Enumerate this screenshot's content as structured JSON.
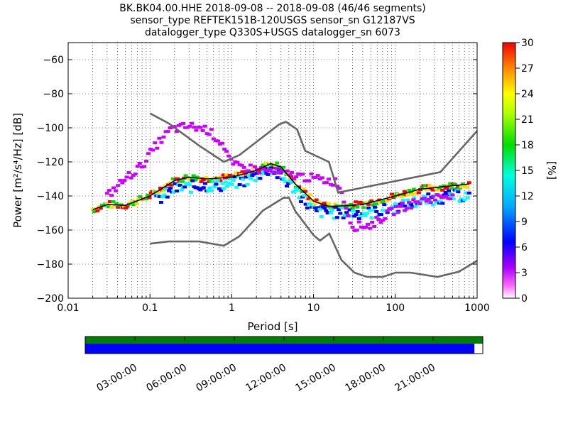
{
  "chart_data": {
    "type": "heatmap",
    "title_lines": [
      "BK.BK04.00.HHE   2018-09-08 -- 2018-09-08  (46/46 segments)",
      "sensor_type REFTEK151B-120USGS sensor_sn G12187VS",
      "datalogger_type Q330S+USGS datalogger_sn 6073"
    ],
    "xlabel": "Period [s]",
    "ylabel": "Power [m²/s⁴/Hz] [dB]",
    "x_scale": "log",
    "xlim": [
      0.01,
      1000
    ],
    "ylim": [
      -200,
      -50
    ],
    "x_ticks": [
      0.01,
      0.1,
      1,
      10,
      100,
      1000
    ],
    "x_tick_labels": [
      "0.01",
      "0.1",
      "1",
      "10",
      "100",
      "1000"
    ],
    "y_ticks": [
      -200,
      -180,
      -160,
      -140,
      -120,
      -100,
      -80,
      -60
    ],
    "y_tick_labels": [
      "−200",
      "−180",
      "−160",
      "−140",
      "−120",
      "−100",
      "−80",
      "−60"
    ],
    "colorbar": {
      "label": "[%]",
      "range": [
        0,
        30
      ],
      "ticks": [
        0,
        3,
        6,
        9,
        12,
        15,
        18,
        21,
        24,
        27,
        30
      ],
      "tick_labels": [
        "0",
        "3",
        "6",
        "9",
        "12",
        "15",
        "18",
        "21",
        "24",
        "27",
        "30"
      ]
    },
    "series": [
      {
        "role": "new_high_noise_model",
        "color": "#666666",
        "points": [
          [
            0.1,
            -91.5
          ],
          [
            0.17,
            -97.4
          ],
          [
            0.4,
            -110.5
          ],
          [
            0.8,
            -120
          ],
          [
            1.24,
            -116
          ],
          [
            3.8,
            -98.0
          ],
          [
            4.6,
            -96.5
          ],
          [
            6.3,
            -101
          ],
          [
            7.9,
            -113.5
          ],
          [
            15.4,
            -120
          ],
          [
            20,
            -138
          ],
          [
            354.8,
            -126
          ],
          [
            10000,
            -48
          ]
        ]
      },
      {
        "role": "new_low_noise_model",
        "color": "#666666",
        "points": [
          [
            0.1,
            -168
          ],
          [
            0.17,
            -166.7
          ],
          [
            0.4,
            -166.7
          ],
          [
            0.8,
            -169.2
          ],
          [
            1.24,
            -163.7
          ],
          [
            2.4,
            -148.6
          ],
          [
            4.3,
            -141.1
          ],
          [
            5.0,
            -141.1
          ],
          [
            6.0,
            -149
          ],
          [
            10,
            -163
          ],
          [
            12,
            -166.2
          ],
          [
            15.6,
            -162.1
          ],
          [
            21.9,
            -177.5
          ],
          [
            31.6,
            -185
          ],
          [
            45,
            -187.5
          ],
          [
            70,
            -187.5
          ],
          [
            101,
            -185
          ],
          [
            154,
            -185
          ],
          [
            328,
            -187.5
          ],
          [
            600,
            -184.4
          ],
          [
            1000,
            -178
          ]
        ]
      },
      {
        "role": "median_psd",
        "color": "#000000",
        "points": [
          [
            0.02,
            -148
          ],
          [
            0.03,
            -145
          ],
          [
            0.05,
            -145.5
          ],
          [
            0.1,
            -140
          ],
          [
            0.2,
            -131
          ],
          [
            0.3,
            -129
          ],
          [
            0.5,
            -130
          ],
          [
            1,
            -129
          ],
          [
            2,
            -125
          ],
          [
            3,
            -121
          ],
          [
            4,
            -123
          ],
          [
            6,
            -133
          ],
          [
            10,
            -143
          ],
          [
            15,
            -146
          ],
          [
            20,
            -146
          ],
          [
            40,
            -145
          ],
          [
            100,
            -140
          ],
          [
            200,
            -136
          ],
          [
            500,
            -134
          ],
          [
            800,
            -133
          ]
        ]
      }
    ],
    "density_bands": [
      {
        "label": "core",
        "colors": [
          "#00dc00",
          "#ffdd00",
          "#ff0000"
        ],
        "points": [
          [
            0.02,
            -148
          ],
          [
            0.03,
            -145
          ],
          [
            0.05,
            -145.5
          ],
          [
            0.1,
            -140
          ],
          [
            0.2,
            -131
          ],
          [
            0.3,
            -129
          ],
          [
            0.5,
            -130
          ],
          [
            1,
            -129
          ],
          [
            2,
            -125
          ],
          [
            3,
            -121
          ],
          [
            4,
            -123
          ],
          [
            6,
            -133
          ],
          [
            10,
            -143
          ],
          [
            15,
            -146
          ],
          [
            20,
            -146
          ],
          [
            40,
            -145
          ],
          [
            100,
            -140
          ],
          [
            200,
            -136
          ],
          [
            500,
            -134
          ],
          [
            800,
            -133
          ]
        ]
      },
      {
        "label": "spread",
        "colors": [
          "#0000ff",
          "#00ffff"
        ],
        "points": [
          [
            0.12,
            -143
          ],
          [
            0.2,
            -136
          ],
          [
            0.4,
            -134
          ],
          [
            0.7,
            -134
          ],
          [
            1.5,
            -131
          ],
          [
            3,
            -124
          ],
          [
            6,
            -136
          ],
          [
            10,
            -149
          ],
          [
            20,
            -150
          ],
          [
            50,
            -150
          ],
          [
            100,
            -147
          ],
          [
            200,
            -143
          ],
          [
            500,
            -140
          ],
          [
            800,
            -140
          ]
        ]
      },
      {
        "label": "outliers",
        "colors": [
          "#cc00ff"
        ],
        "points": [
          [
            0.03,
            -140
          ],
          [
            0.05,
            -130
          ],
          [
            0.08,
            -122
          ],
          [
            0.12,
            -110
          ],
          [
            0.18,
            -101
          ],
          [
            0.3,
            -99
          ],
          [
            0.5,
            -101
          ],
          [
            0.8,
            -110
          ],
          [
            1.0,
            -122
          ],
          [
            20,
            -132
          ],
          [
            30,
            -158
          ],
          [
            50,
            -157
          ],
          [
            100,
            -148
          ],
          [
            200,
            -143
          ],
          [
            500,
            -139
          ]
        ]
      }
    ]
  },
  "timeline": {
    "labels": [
      "03:00:00",
      "06:00:00",
      "09:00:00",
      "12:00:00",
      "15:00:00",
      "18:00:00",
      "21:00:00"
    ],
    "data_fraction": 0.979,
    "colors": {
      "top": "#008000",
      "bottom": "#0000ff"
    }
  }
}
